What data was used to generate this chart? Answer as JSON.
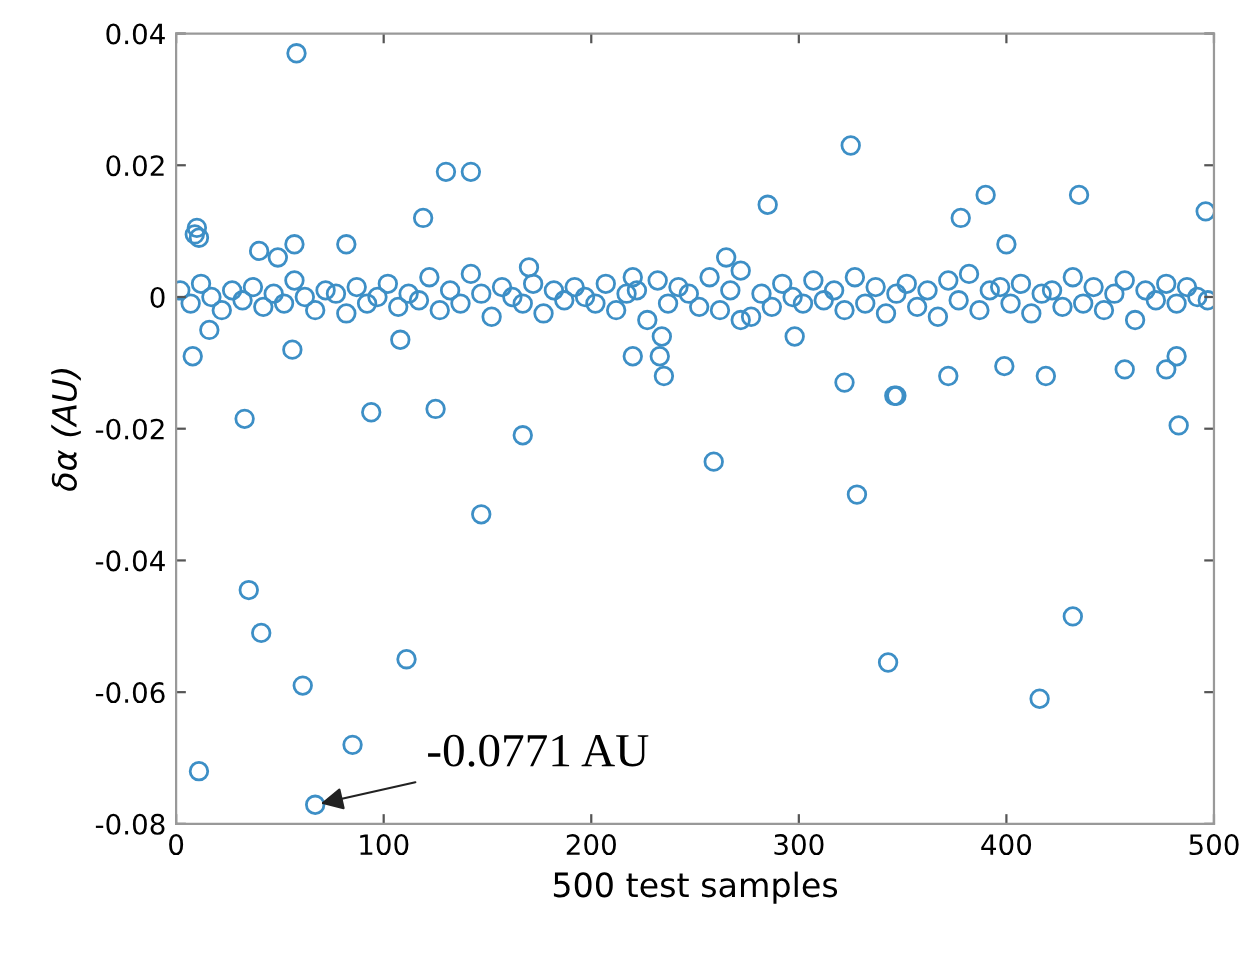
{
  "chart_data": {
    "type": "scatter",
    "xlabel": "500 test samples",
    "ylabel": "δα (AU)",
    "xlim": [
      0,
      500
    ],
    "ylim": [
      -0.08,
      0.04
    ],
    "xticks": [
      0,
      100,
      200,
      300,
      400,
      500
    ],
    "yticks": [
      -0.08,
      -0.06,
      -0.04,
      -0.02,
      0,
      0.02,
      0.04
    ],
    "grid": false,
    "marker": "circle",
    "annotations": [
      {
        "text": "-0.0771 AU",
        "x": 67,
        "y": -0.0771
      }
    ],
    "series": [
      {
        "color": "#3d8fc6",
        "x": [
          58,
          9,
          10,
          11,
          40,
          49,
          57,
          82,
          119,
          130,
          142,
          220,
          170,
          325,
          285,
          390,
          435,
          378,
          400,
          496,
          265,
          8,
          16,
          56,
          108,
          220,
          234,
          233,
          235,
          298,
          322,
          347,
          372,
          399,
          419,
          457,
          482,
          477,
          272,
          33,
          94,
          125,
          167,
          147,
          35,
          41,
          61,
          111,
          85,
          11,
          67,
          259,
          328,
          346,
          483,
          432,
          343,
          416,
          2,
          7,
          12,
          17,
          22,
          27,
          32,
          37,
          42,
          47,
          52,
          57,
          62,
          67,
          72,
          77,
          82,
          87,
          92,
          97,
          102,
          107,
          112,
          117,
          122,
          127,
          132,
          137,
          142,
          147,
          152,
          157,
          162,
          167,
          172,
          177,
          182,
          187,
          192,
          197,
          202,
          207,
          212,
          217,
          222,
          227,
          232,
          237,
          242,
          247,
          252,
          257,
          262,
          267,
          272,
          277,
          282,
          287,
          292,
          297,
          302,
          307,
          312,
          317,
          322,
          327,
          332,
          337,
          342,
          347,
          352,
          357,
          362,
          367,
          372,
          377,
          382,
          387,
          392,
          397,
          402,
          407,
          412,
          417,
          422,
          427,
          432,
          437,
          442,
          447,
          452,
          457,
          462,
          467,
          472,
          477,
          482,
          487,
          492,
          497
        ],
        "values": [
          0.037,
          0.0095,
          0.0105,
          0.009,
          0.007,
          0.006,
          0.008,
          0.008,
          0.012,
          0.019,
          0.019,
          0.003,
          0.0045,
          0.023,
          0.014,
          0.0155,
          0.0155,
          0.012,
          0.008,
          0.013,
          0.006,
          -0.009,
          -0.005,
          -0.008,
          -0.0065,
          -0.009,
          -0.006,
          -0.009,
          -0.012,
          -0.006,
          -0.013,
          -0.015,
          -0.012,
          -0.0105,
          -0.012,
          -0.011,
          -0.009,
          -0.011,
          -0.0035,
          -0.0185,
          -0.0175,
          -0.017,
          -0.021,
          -0.033,
          -0.0445,
          -0.051,
          -0.059,
          -0.055,
          -0.068,
          -0.072,
          -0.0771,
          -0.025,
          -0.03,
          -0.015,
          -0.0195,
          -0.0485,
          -0.0555,
          -0.061,
          0.001,
          -0.001,
          0.002,
          0,
          -0.002,
          0.001,
          -0.0005,
          0.0015,
          -0.0015,
          0.0005,
          -0.001,
          0.0025,
          0,
          -0.002,
          0.001,
          0.0005,
          -0.0025,
          0.0015,
          -0.001,
          0,
          0.002,
          -0.0015,
          0.0005,
          -0.0005,
          0.003,
          -0.002,
          0.001,
          -0.001,
          0.0035,
          0.0005,
          -0.003,
          0.0015,
          0,
          -0.001,
          0.002,
          -0.0025,
          0.001,
          -0.0005,
          0.0015,
          0,
          -0.001,
          0.002,
          -0.002,
          0.0005,
          0.001,
          -0.0035,
          0.0025,
          -0.001,
          0.0015,
          0.0005,
          -0.0015,
          0.003,
          -0.002,
          0.001,
          0.004,
          -0.003,
          0.0005,
          -0.0015,
          0.002,
          0,
          -0.001,
          0.0025,
          -0.0005,
          0.001,
          -0.002,
          0.003,
          -0.001,
          0.0015,
          -0.0025,
          0.0005,
          0.002,
          -0.0015,
          0.001,
          -0.003,
          0.0025,
          -0.0005,
          0.0035,
          -0.002,
          0.001,
          0.0015,
          -0.001,
          0.002,
          -0.0025,
          0.0005,
          0.001,
          -0.0015,
          0.003,
          -0.001,
          0.0015,
          -0.002,
          0.0005,
          0.0025,
          -0.0035,
          0.001,
          -0.0005,
          0.002,
          -0.001,
          0.0015,
          0,
          -0.0005
        ]
      }
    ]
  }
}
